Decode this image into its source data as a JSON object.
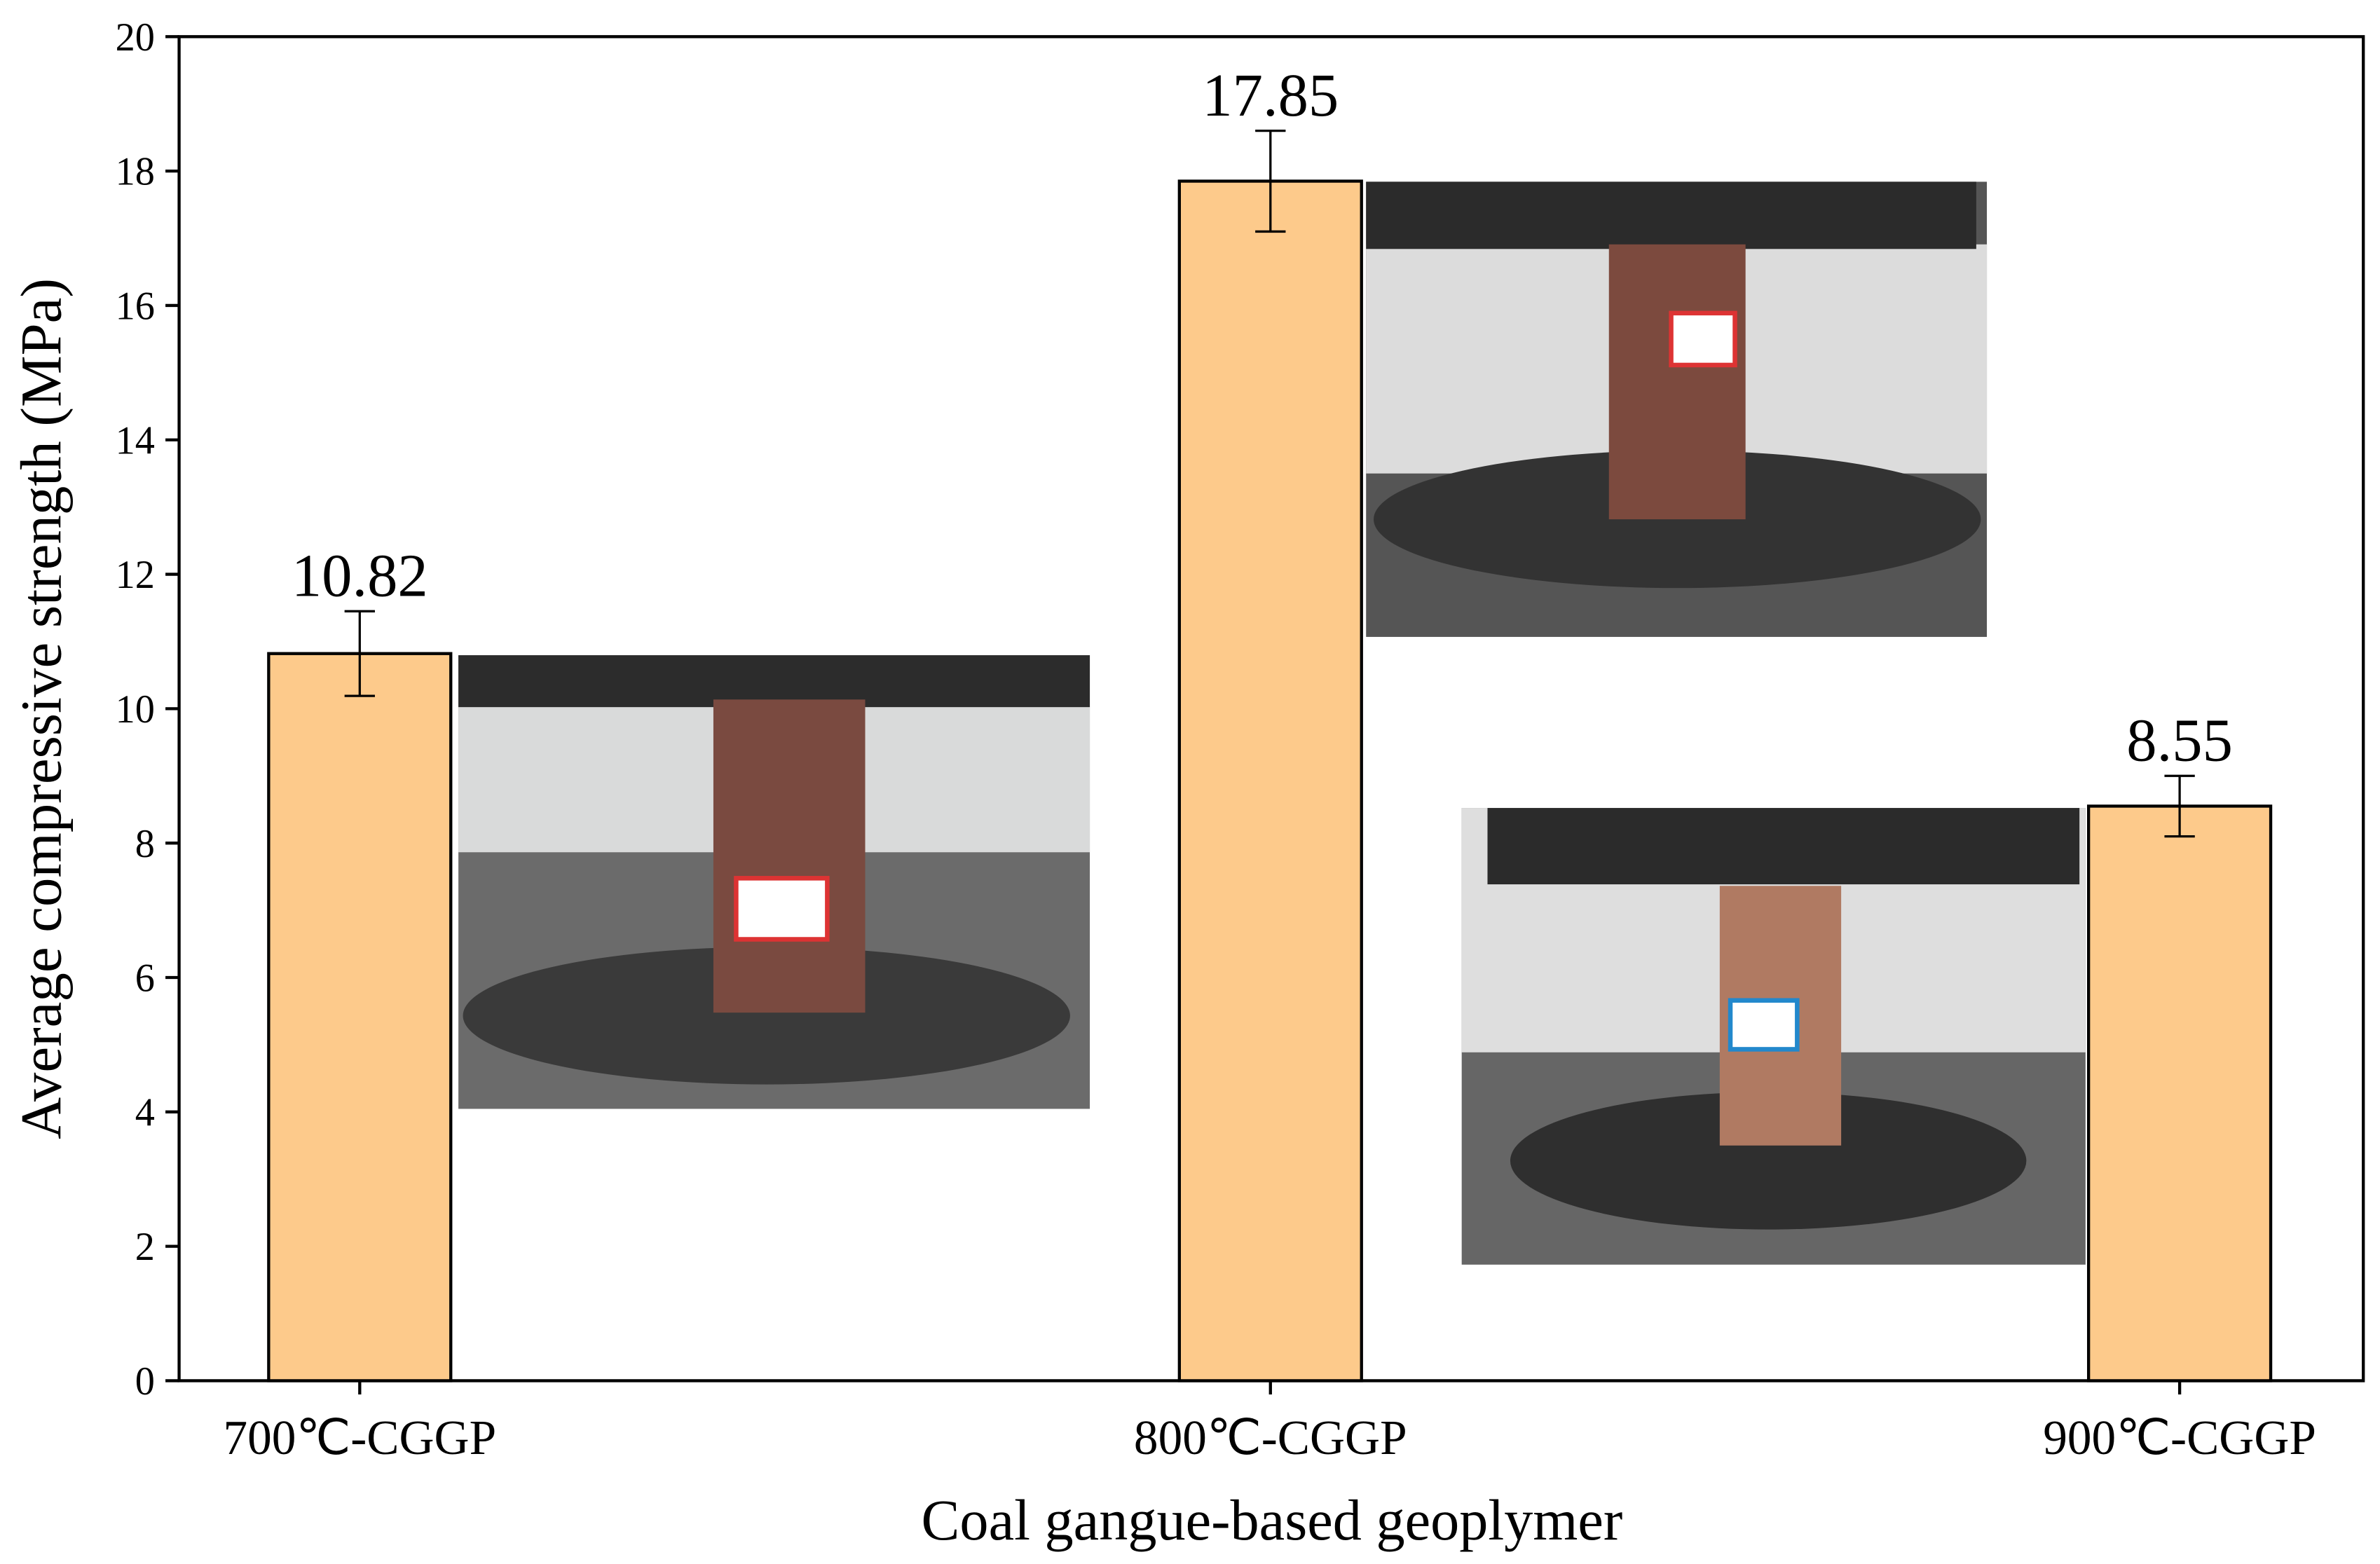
{
  "chart_data": {
    "type": "bar",
    "y_label": "Average compressive strength (MPa)",
    "x_label": "Coal gangue-based geoplymer",
    "categories": [
      "700℃-CGGP",
      "800℃-CGGP",
      "900℃-CGGP"
    ],
    "values": [
      10.82,
      17.85,
      8.55
    ],
    "errors": [
      0.63,
      0.75,
      0.45
    ],
    "color": "#fdca8b",
    "ylim": [
      0,
      20
    ],
    "yticks": [
      0,
      2,
      4,
      6,
      8,
      10,
      12,
      14,
      16,
      18,
      20
    ]
  }
}
